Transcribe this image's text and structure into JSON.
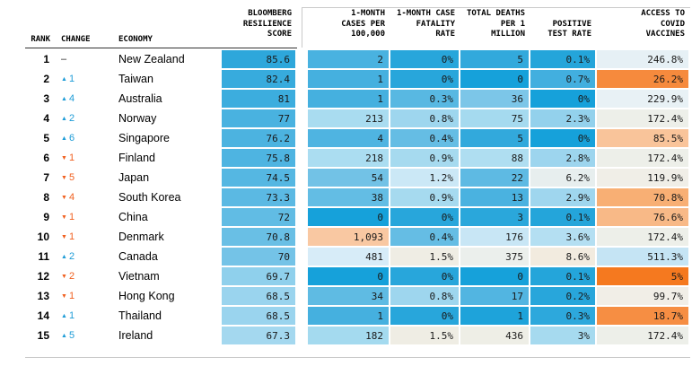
{
  "accents": {
    "up": "#1e9cd7",
    "down": "#f05f1e",
    "none": "#222222"
  },
  "table": {
    "headers": {
      "rank": "RANK",
      "change": "CHANGE",
      "economy": "ECONOMY",
      "score": "BLOOMBERG\nRESILIENCE\nSCORE",
      "cases": "1-MONTH\nCASES PER\n100,000",
      "fatality": "1-MONTH CASE\nFATALITY\nRATE",
      "deaths": "TOTAL DEATHS\nPER 1\nMILLION",
      "test_rate": "POSITIVE\nTEST RATE",
      "vaccines": "ACCESS TO\nCOVID\nVACCINES"
    }
  },
  "chart_data": {
    "type": "table",
    "columns": [
      "RANK",
      "CHANGE",
      "ECONOMY",
      "BLOOMBERG RESILIENCE SCORE",
      "1-MONTH CASES PER 100,000",
      "1-MONTH CASE FATALITY RATE",
      "TOTAL DEATHS PER 1 MILLION",
      "POSITIVE TEST RATE",
      "ACCESS TO COVID VACCINES"
    ],
    "rows": [
      {
        "rank": "1",
        "change": {
          "dir": "none",
          "label": "–"
        },
        "economy": "New Zealand",
        "cells": [
          {
            "v": "85.6",
            "bg": "#2ea7db"
          },
          {
            "v": "2",
            "bg": "#49b2e0"
          },
          {
            "v": "0%",
            "bg": "#28a6db"
          },
          {
            "v": "5",
            "bg": "#32a9dc"
          },
          {
            "v": "0.1%",
            "bg": "#24a5da"
          },
          {
            "v": "246.8%",
            "bg": "#e6f0f5"
          }
        ]
      },
      {
        "rank": "2",
        "change": {
          "dir": "up",
          "label": "1"
        },
        "economy": "Taiwan",
        "cells": [
          {
            "v": "82.4",
            "bg": "#37abdd"
          },
          {
            "v": "1",
            "bg": "#45b0df"
          },
          {
            "v": "0%",
            "bg": "#28a6db"
          },
          {
            "v": "0",
            "bg": "#16a1da"
          },
          {
            "v": "0.7%",
            "bg": "#42afdf"
          },
          {
            "v": "26.2%",
            "bg": "#f68a3d"
          }
        ]
      },
      {
        "rank": "3",
        "change": {
          "dir": "up",
          "label": "4"
        },
        "economy": "Australia",
        "cells": [
          {
            "v": "81",
            "bg": "#3cadde"
          },
          {
            "v": "1",
            "bg": "#45b0df"
          },
          {
            "v": "0.3%",
            "bg": "#58b8e2"
          },
          {
            "v": "36",
            "bg": "#7cc6e8"
          },
          {
            "v": "0%",
            "bg": "#16a1da"
          },
          {
            "v": "229.9%",
            "bg": "#e8f1f5"
          }
        ]
      },
      {
        "rank": "4",
        "change": {
          "dir": "up",
          "label": "2"
        },
        "economy": "Norway",
        "cells": [
          {
            "v": "77",
            "bg": "#49b2e0"
          },
          {
            "v": "213",
            "bg": "#a9dcf0"
          },
          {
            "v": "0.8%",
            "bg": "#9ed6ee"
          },
          {
            "v": "75",
            "bg": "#a5daef"
          },
          {
            "v": "2.3%",
            "bg": "#93d1ec"
          },
          {
            "v": "172.4%",
            "bg": "#edefe9"
          }
        ]
      },
      {
        "rank": "5",
        "change": {
          "dir": "up",
          "label": "6"
        },
        "economy": "Singapore",
        "cells": [
          {
            "v": "76.2",
            "bg": "#4cb3e0"
          },
          {
            "v": "4",
            "bg": "#4fb4e1"
          },
          {
            "v": "0.4%",
            "bg": "#65bde4"
          },
          {
            "v": "5",
            "bg": "#32a9dc"
          },
          {
            "v": "0%",
            "bg": "#16a1da"
          },
          {
            "v": "85.5%",
            "bg": "#f9c49a"
          }
        ]
      },
      {
        "rank": "6",
        "change": {
          "dir": "down",
          "label": "1"
        },
        "economy": "Finland",
        "cells": [
          {
            "v": "75.8",
            "bg": "#4eb4e1"
          },
          {
            "v": "218",
            "bg": "#abddf1"
          },
          {
            "v": "0.9%",
            "bg": "#a6daef"
          },
          {
            "v": "88",
            "bg": "#afdef1"
          },
          {
            "v": "2.8%",
            "bg": "#9dd5ee"
          },
          {
            "v": "172.4%",
            "bg": "#edefe9"
          }
        ]
      },
      {
        "rank": "7",
        "change": {
          "dir": "down",
          "label": "5"
        },
        "economy": "Japan",
        "cells": [
          {
            "v": "74.5",
            "bg": "#55b7e2"
          },
          {
            "v": "54",
            "bg": "#72c2e6"
          },
          {
            "v": "1.2%",
            "bg": "#cbe8f6"
          },
          {
            "v": "22",
            "bg": "#5ebae3"
          },
          {
            "v": "6.2%",
            "bg": "#e7eeee"
          },
          {
            "v": "119.9%",
            "bg": "#f0eee7"
          }
        ]
      },
      {
        "rank": "8",
        "change": {
          "dir": "down",
          "label": "4"
        },
        "economy": "South Korea",
        "cells": [
          {
            "v": "73.3",
            "bg": "#5bb9e3"
          },
          {
            "v": "38",
            "bg": "#63bde4"
          },
          {
            "v": "0.9%",
            "bg": "#a6daef"
          },
          {
            "v": "13",
            "bg": "#4ab2e0"
          },
          {
            "v": "2.9%",
            "bg": "#9fd6ee"
          },
          {
            "v": "70.8%",
            "bg": "#f8af74"
          }
        ]
      },
      {
        "rank": "9",
        "change": {
          "dir": "down",
          "label": "1"
        },
        "economy": "China",
        "cells": [
          {
            "v": "72",
            "bg": "#61bce4"
          },
          {
            "v": "0",
            "bg": "#16a1da"
          },
          {
            "v": "0%",
            "bg": "#28a6db"
          },
          {
            "v": "3",
            "bg": "#2aa7db"
          },
          {
            "v": "0.1%",
            "bg": "#24a5da"
          },
          {
            "v": "76.6%",
            "bg": "#f8b987"
          }
        ]
      },
      {
        "rank": "10",
        "change": {
          "dir": "down",
          "label": "1"
        },
        "economy": "Denmark",
        "cells": [
          {
            "v": "70.8",
            "bg": "#69bfe5"
          },
          {
            "v": "1,093",
            "bg": "#f9c8a2"
          },
          {
            "v": "0.4%",
            "bg": "#65bde4"
          },
          {
            "v": "176",
            "bg": "#c8e6f5"
          },
          {
            "v": "3.6%",
            "bg": "#b4dff2"
          },
          {
            "v": "172.4%",
            "bg": "#edefe9"
          }
        ]
      },
      {
        "rank": "11",
        "change": {
          "dir": "up",
          "label": "2"
        },
        "economy": "Canada",
        "cells": [
          {
            "v": "70",
            "bg": "#74c3e7"
          },
          {
            "v": "481",
            "bg": "#d7ecf8"
          },
          {
            "v": "1.5%",
            "bg": "#efede4"
          },
          {
            "v": "375",
            "bg": "#ebefec"
          },
          {
            "v": "8.6%",
            "bg": "#f2ebdf"
          },
          {
            "v": "511.3%",
            "bg": "#c5e4f4"
          }
        ]
      },
      {
        "rank": "12",
        "change": {
          "dir": "down",
          "label": "2"
        },
        "economy": "Vietnam",
        "cells": [
          {
            "v": "69.7",
            "bg": "#8fd0ec"
          },
          {
            "v": "0",
            "bg": "#16a1da"
          },
          {
            "v": "0%",
            "bg": "#28a6db"
          },
          {
            "v": "0",
            "bg": "#16a1da"
          },
          {
            "v": "0.1%",
            "bg": "#24a5da"
          },
          {
            "v": "5%",
            "bg": "#f5791f"
          }
        ]
      },
      {
        "rank": "13",
        "change": {
          "dir": "down",
          "label": "1"
        },
        "economy": "Hong Kong",
        "cells": [
          {
            "v": "68.5",
            "bg": "#9ad4ee"
          },
          {
            "v": "34",
            "bg": "#5fbbe3"
          },
          {
            "v": "0.8%",
            "bg": "#9ed6ee"
          },
          {
            "v": "17",
            "bg": "#52b5e1"
          },
          {
            "v": "0.2%",
            "bg": "#28a6db"
          },
          {
            "v": "99.7%",
            "bg": "#f1eee7"
          }
        ]
      },
      {
        "rank": "14",
        "change": {
          "dir": "up",
          "label": "1"
        },
        "economy": "Thailand",
        "cells": [
          {
            "v": "68.5",
            "bg": "#9ad4ee"
          },
          {
            "v": "1",
            "bg": "#45b0df"
          },
          {
            "v": "0%",
            "bg": "#28a6db"
          },
          {
            "v": "1",
            "bg": "#1ea3da"
          },
          {
            "v": "0.3%",
            "bg": "#2da8dc"
          },
          {
            "v": "18.7%",
            "bg": "#f68e43"
          }
        ]
      },
      {
        "rank": "15",
        "change": {
          "dir": "up",
          "label": "5"
        },
        "economy": "Ireland",
        "cells": [
          {
            "v": "67.3",
            "bg": "#a4d8ef"
          },
          {
            "v": "182",
            "bg": "#a4daef"
          },
          {
            "v": "1.5%",
            "bg": "#efede4"
          },
          {
            "v": "436",
            "bg": "#eeeee6"
          },
          {
            "v": "3%",
            "bg": "#a6daef"
          },
          {
            "v": "172.4%",
            "bg": "#edefe9"
          }
        ]
      }
    ]
  }
}
